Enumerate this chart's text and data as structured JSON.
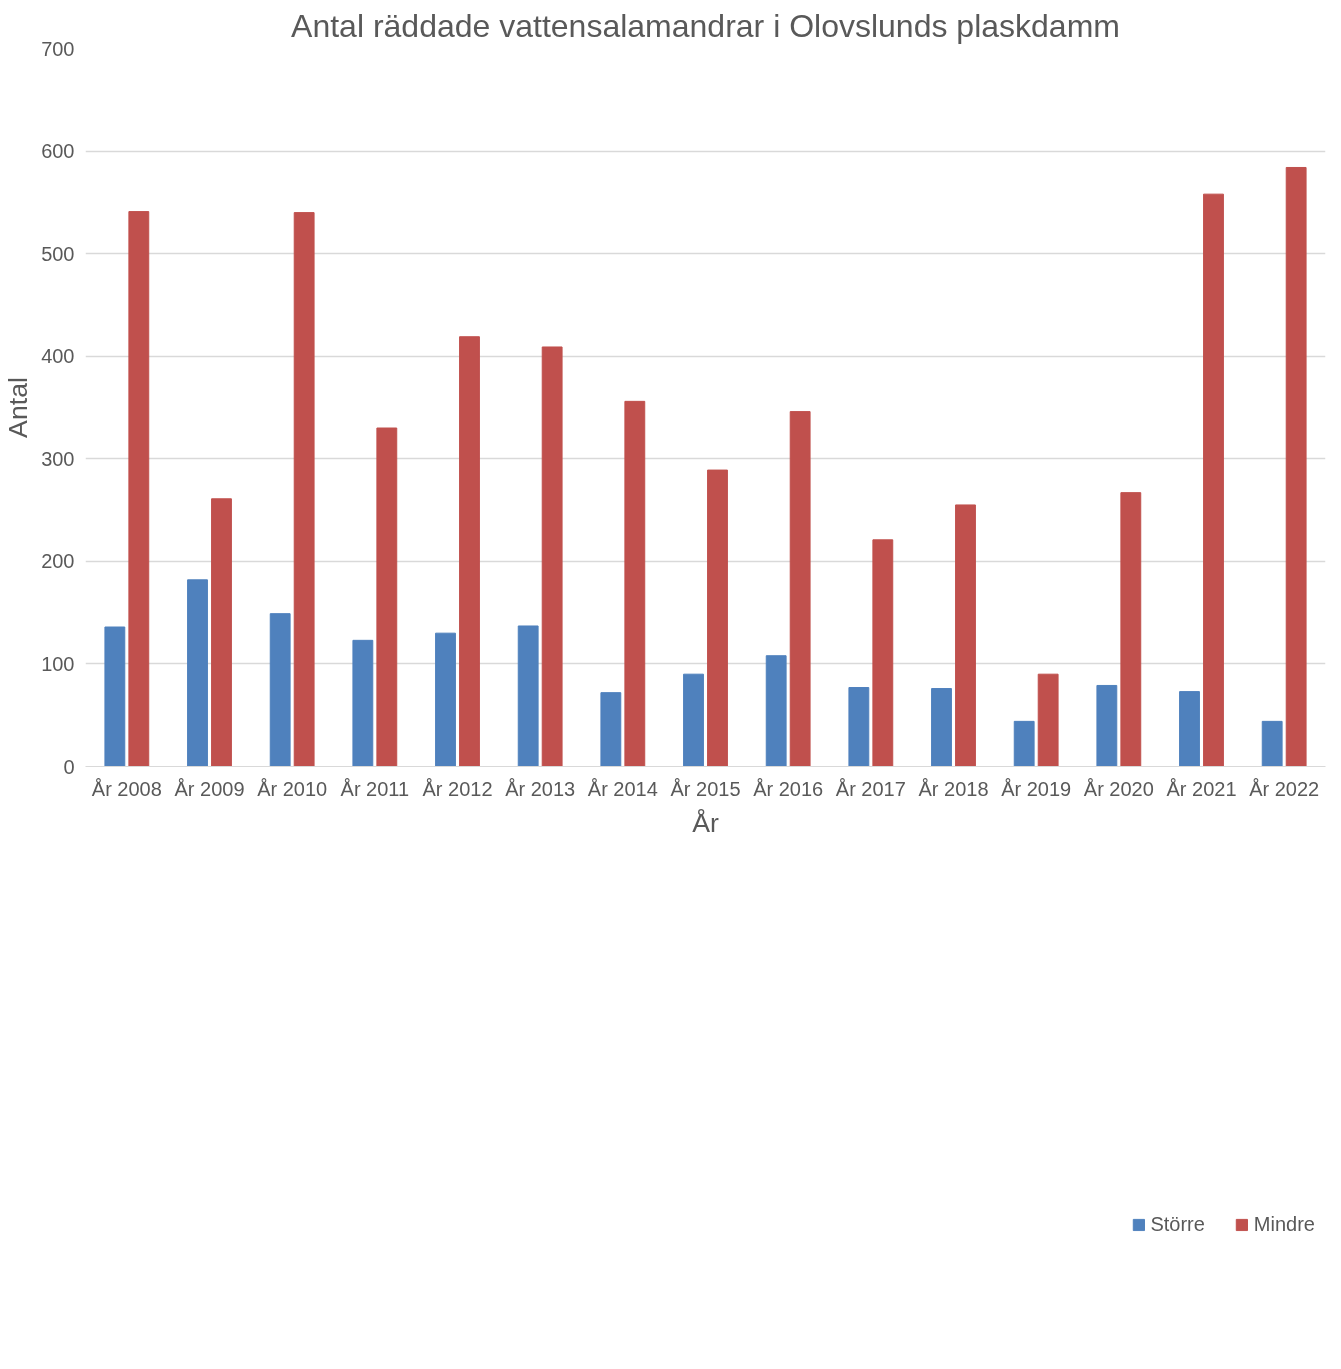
{
  "chart_data": {
    "type": "bar",
    "title": "Antal räddade vattensalamandrar i Olovslunds plaskdamm",
    "xlabel": "År",
    "ylabel": "Antal",
    "categories": [
      "År 2008",
      "År 2009",
      "År 2010",
      "År 2011",
      "År 2012",
      "År 2013",
      "År 2014",
      "År 2015",
      "År 2016",
      "År 2017",
      "År 2018",
      "År 2019",
      "År 2020",
      "År 2021",
      "År 2022"
    ],
    "series": [
      {
        "name": "Större",
        "color": "#4f81bd",
        "values": [
          136,
          182,
          149,
          123,
          130,
          137,
          72,
          90,
          108,
          77,
          76,
          44,
          79,
          73,
          44
        ]
      },
      {
        "name": "Mindre",
        "color": "#c0504d",
        "values": [
          541,
          261,
          540,
          330,
          419,
          409,
          356,
          289,
          346,
          221,
          255,
          90,
          267,
          558,
          584
        ]
      }
    ],
    "ylim": [
      0,
      700
    ],
    "yticks": [
      0,
      100,
      200,
      300,
      400,
      500,
      600,
      700
    ],
    "grid": "y",
    "legend": "bottom right"
  }
}
